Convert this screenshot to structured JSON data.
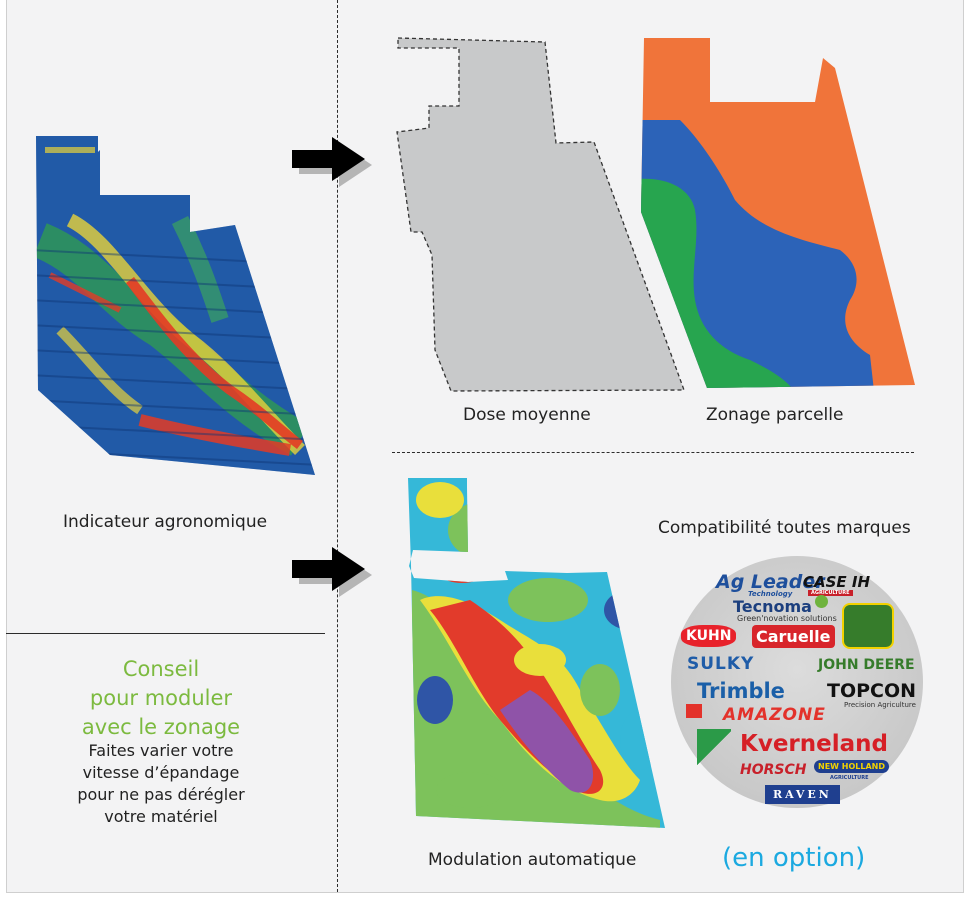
{
  "captions": {
    "indicator": "Indicateur agronomique",
    "dose": "Dose moyenne",
    "zoning": "Zonage parcelle",
    "modulation": "Modulation automatique",
    "compat": "Compatibilité toutes marques",
    "option": "(en option)"
  },
  "advice": {
    "title_lines": [
      "Conseil",
      "pour moduler",
      "avec le zonage"
    ],
    "body_lines": [
      "Faites varier votre",
      "vitesse d’épandage",
      "pour ne pas dérégler",
      "votre matériel"
    ]
  },
  "brands": {
    "agleader": "Ag Leader",
    "agleader_sub": "Technology",
    "caseih": "CASE IH",
    "caseih_sub": "AGRICULTURE",
    "tecnoma": "Tecnoma",
    "tecnoma_sub": "Green'novation solutions",
    "kuhn": "KUHN",
    "caruelle": "Caruelle",
    "sulky": "SULKY",
    "johndeere": "JOHN DEERE",
    "trimble": "Trimble",
    "topcon": "TOPCON",
    "topcon_sub": "Precision Agriculture",
    "amazone": "AMAZONE",
    "kverneland": "Kverneland",
    "horsch": "HORSCH",
    "newholland": "NEW HOLLAND",
    "newholland_sub": "AGRICULTURE",
    "raven": "RAVEN"
  },
  "colors": {
    "advice_green": "#7cba3f",
    "option_blue": "#1ba9e0",
    "zone_orange": "#f0743a",
    "zone_blue": "#2c63b8",
    "zone_green": "#27a54f",
    "dose_grey": "#c8c9ca"
  },
  "icons": {
    "arrow": "right-arrow-icon"
  }
}
